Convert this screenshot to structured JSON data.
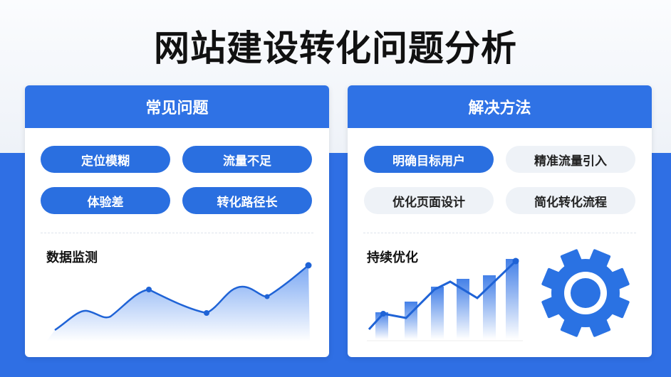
{
  "title": "网站建设转化问题分析",
  "left": {
    "header": "常见问题",
    "pills": [
      "定位模糊",
      "流量不足",
      "体验差",
      "转化路径长"
    ],
    "chart_title": "数据监测"
  },
  "right": {
    "header": "解决方法",
    "pills": [
      "明确目标用户",
      "精准流量引入",
      "优化页面设计",
      "简化转化流程"
    ],
    "chart_title": "持续优化",
    "icon": "gear-icon"
  },
  "colors": {
    "accent": "#2f72e5",
    "pill_active": "#2a6fe0",
    "pill_inactive": "#eef2f7"
  }
}
